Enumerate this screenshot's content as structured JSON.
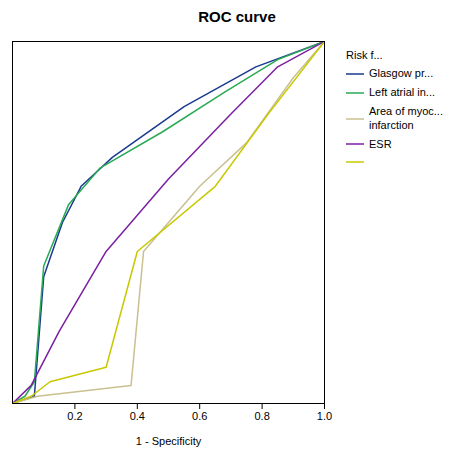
{
  "chart_data": {
    "type": "line",
    "title": "ROC curve",
    "xlabel": "1 - Specificity",
    "series": [
      {
        "name": "Glasgow pr...",
        "color": "#1a3a8f",
        "x": [
          0.0,
          0.07,
          0.1,
          0.16,
          0.22,
          0.32,
          0.55,
          0.78,
          1.0
        ],
        "values": [
          0.0,
          0.02,
          0.35,
          0.5,
          0.6,
          0.68,
          0.82,
          0.93,
          1.0
        ]
      },
      {
        "name": "Left atrial in...",
        "color": "#2aaa55",
        "x": [
          0.0,
          0.04,
          0.07,
          0.1,
          0.18,
          0.28,
          0.48,
          0.68,
          0.85,
          1.0
        ],
        "values": [
          0.0,
          0.02,
          0.06,
          0.38,
          0.55,
          0.65,
          0.75,
          0.86,
          0.95,
          1.0
        ]
      },
      {
        "name": "Area of myoc...\ninfarction",
        "color": "#c8c090",
        "x": [
          0.0,
          0.08,
          0.38,
          0.42,
          0.6,
          0.75,
          0.9,
          1.0
        ],
        "values": [
          0.0,
          0.02,
          0.05,
          0.42,
          0.6,
          0.72,
          0.9,
          1.0
        ]
      },
      {
        "name": "ESR",
        "color": "#7b1fa2",
        "x": [
          0.0,
          0.06,
          0.15,
          0.3,
          0.5,
          0.7,
          0.85,
          1.0
        ],
        "values": [
          0.0,
          0.05,
          0.2,
          0.42,
          0.62,
          0.8,
          0.93,
          1.0
        ]
      },
      {
        "color": "#c8c800",
        "x": [
          0.0,
          0.06,
          0.12,
          0.3,
          0.4,
          0.65,
          0.82,
          1.0
        ],
        "values": [
          0.0,
          0.02,
          0.06,
          0.1,
          0.42,
          0.6,
          0.8,
          1.0
        ]
      }
    ],
    "xlim": [
      0.0,
      1.0
    ],
    "ylim": [
      0.0,
      1.0
    ],
    "xticks": [
      0.2,
      0.4,
      0.6,
      0.8,
      {
        "value": 1.0,
        "label": "1.0"
      }
    ],
    "yticks": [],
    "tick_labels": "x",
    "legend_title": "Risk f...",
    "legend": "right"
  }
}
